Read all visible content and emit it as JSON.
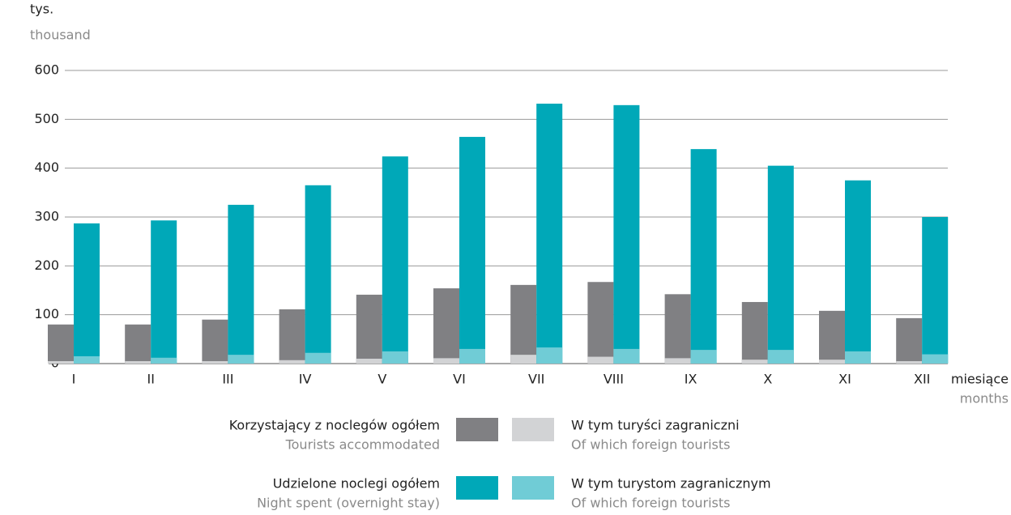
{
  "chart_data": {
    "type": "bar",
    "y_label": "tys.",
    "y_label_en": "thousand",
    "x_label": "miesiące",
    "x_label_en": "months",
    "categories": [
      "I",
      "II",
      "III",
      "IV",
      "V",
      "VI",
      "VII",
      "VIII",
      "IX",
      "X",
      "XI",
      "XII"
    ],
    "series": [
      {
        "name": "Korzystający z noclegów ogółem",
        "name_en": "Tourists accommodated",
        "color": "#808083",
        "group": 0,
        "values": [
          80,
          80,
          90,
          111,
          141,
          154,
          161,
          167,
          142,
          126,
          108,
          93
        ]
      },
      {
        "name": "W tym turyści zagraniczni",
        "name_en": "Of which foreign tourists",
        "color": "#d2d3d5",
        "group": 0,
        "values": [
          5,
          5,
          5,
          7,
          10,
          11,
          18,
          14,
          11,
          8,
          8,
          5
        ]
      },
      {
        "name": "Udzielone noclegi ogółem",
        "name_en": "Night spent (overnight stay)",
        "color": "#00a8b8",
        "group": 1,
        "values": [
          287,
          293,
          325,
          365,
          424,
          464,
          532,
          529,
          439,
          405,
          375,
          300
        ]
      },
      {
        "name": "W tym turystom zagranicznym",
        "name_en": "Of which foreign tourists",
        "color": "#70ccd6",
        "group": 1,
        "values": [
          15,
          12,
          18,
          22,
          25,
          30,
          33,
          30,
          28,
          28,
          25,
          19
        ]
      }
    ],
    "ylim": [
      0,
      600
    ],
    "yticks": [
      0,
      100,
      200,
      300,
      400,
      500,
      600
    ],
    "grid": true
  }
}
